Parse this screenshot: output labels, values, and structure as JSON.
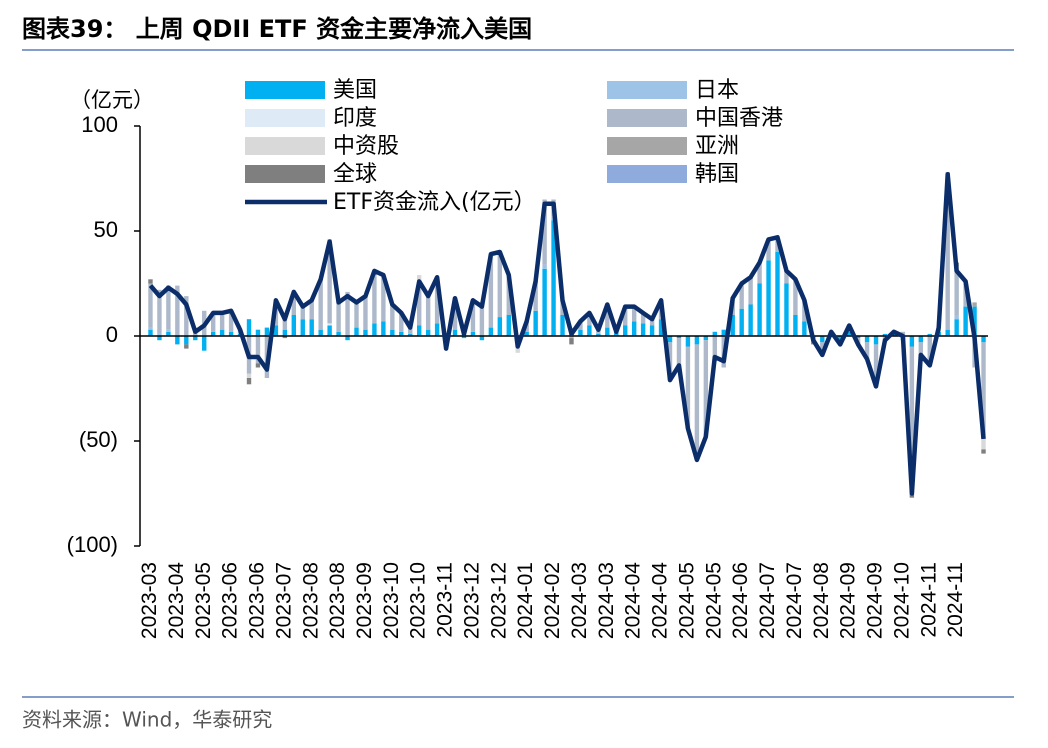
{
  "chart_data": {
    "type": "bar",
    "title": "图表39： 上周 QDII ETF 资金主要净流入美国",
    "y_label": "（亿元）",
    "source": "资料来源：Wind，华泰研究",
    "categories": [
      "2023-03",
      null,
      null,
      "2023-04",
      null,
      null,
      "2023-05",
      null,
      null,
      "2023-06",
      null,
      null,
      "2023-06",
      null,
      null,
      "2023-07",
      null,
      null,
      "2023-08",
      null,
      null,
      "2023-08",
      null,
      null,
      "2023-09",
      null,
      null,
      "2023-10",
      null,
      null,
      "2023-10",
      null,
      null,
      "2023-11",
      null,
      null,
      "2023-12",
      null,
      null,
      "2023-12",
      null,
      null,
      "2024-01",
      null,
      null,
      "2024-02",
      null,
      null,
      "2024-03",
      null,
      null,
      "2024-03",
      null,
      null,
      "2024-04",
      null,
      null,
      "2024-04",
      null,
      null,
      "2024-05",
      null,
      null,
      "2024-05",
      null,
      null,
      "2024-06",
      null,
      null,
      "2024-07",
      null,
      null,
      "2024-07",
      null,
      null,
      "2024-08",
      null,
      null,
      "2024-09",
      null,
      null,
      "2024-09",
      null,
      null,
      "2024-10",
      null,
      null,
      "2024-11",
      null,
      null,
      "2024-11",
      null,
      null,
      null
    ],
    "ylim": [
      -100,
      100
    ],
    "yticks": [
      {
        "value": -100,
        "label": "(100)"
      },
      {
        "value": -50,
        "label": "(50)"
      },
      0,
      50,
      100
    ],
    "series": [
      {
        "name": "美国",
        "color": "#00b0f0",
        "values": [
          3,
          -2,
          2,
          -4,
          -4,
          -2,
          -7,
          2,
          3,
          2,
          1,
          8,
          3,
          4,
          5,
          3,
          10,
          8,
          8,
          3,
          5,
          2,
          -2,
          4,
          3,
          6,
          7,
          3,
          2,
          1,
          5,
          3,
          6,
          -2,
          3,
          -1,
          2,
          -2,
          4,
          9,
          10,
          -2,
          2,
          12,
          32,
          55,
          10,
          2,
          3,
          5,
          1,
          4,
          2,
          5,
          7,
          6,
          5,
          8,
          -3,
          -1,
          -5,
          -4,
          -2,
          2,
          3,
          10,
          13,
          15,
          25,
          36,
          40,
          25,
          10,
          7,
          -2,
          -3,
          1,
          -2,
          2,
          -1,
          -3,
          -4,
          1,
          1,
          -2,
          -5,
          -3,
          1,
          2,
          3,
          8,
          14,
          14,
          -3
        ]
      },
      {
        "name": "日本",
        "color": "#9dc3e6",
        "values": [
          1,
          1,
          1,
          0,
          0,
          0,
          0,
          0,
          0,
          0,
          0,
          0,
          0,
          0,
          0,
          0,
          0,
          0,
          0,
          0,
          0,
          0,
          0,
          0,
          0,
          0,
          0,
          0,
          0,
          0,
          0,
          0,
          0,
          0,
          0,
          0,
          0,
          0,
          0,
          0,
          0,
          0,
          0,
          0,
          2,
          2,
          0,
          0,
          0,
          0,
          0,
          0,
          0,
          0,
          0,
          0,
          0,
          0,
          0,
          0,
          0,
          0,
          0,
          0,
          0,
          0,
          0,
          0,
          0,
          0,
          0,
          0,
          0,
          0,
          0,
          0,
          0,
          0,
          0,
          0,
          0,
          0,
          0,
          0,
          0,
          0,
          0,
          0,
          0,
          0,
          2,
          0,
          0,
          0
        ]
      },
      {
        "name": "印度",
        "color": "#deebf7",
        "values": [
          0,
          0,
          0,
          0,
          0,
          0,
          0,
          0,
          0,
          0,
          0,
          0,
          0,
          0,
          0,
          0,
          0,
          0,
          0,
          0,
          1,
          0,
          0,
          0,
          0,
          0,
          0,
          0,
          0,
          0,
          0,
          0,
          0,
          0,
          0,
          0,
          0,
          0,
          0,
          0,
          0,
          0,
          0,
          0,
          0,
          0,
          0,
          0,
          0,
          0,
          0,
          0,
          0,
          0,
          0,
          0,
          0,
          0,
          0,
          0,
          0,
          0,
          0,
          0,
          0,
          0,
          0,
          0,
          0,
          0,
          0,
          0,
          0,
          0,
          0,
          0,
          0,
          0,
          0,
          0,
          0,
          0,
          0,
          0,
          0,
          0,
          0,
          0,
          0,
          0,
          0,
          0,
          0,
          0
        ]
      },
      {
        "name": "中国香港",
        "color": "#adb9ca",
        "values": [
          21,
          21,
          21,
          24,
          19,
          4,
          12,
          9,
          8,
          10,
          2,
          -18,
          -13,
          -20,
          12,
          5,
          11,
          6,
          9,
          24,
          40,
          14,
          21,
          12,
          16,
          25,
          22,
          12,
          9,
          3,
          21,
          16,
          22,
          -4,
          15,
          2,
          15,
          16,
          35,
          31,
          19,
          -3,
          5,
          14,
          31,
          8,
          7,
          -1,
          4,
          6,
          2,
          11,
          0,
          9,
          7,
          5,
          3,
          9,
          -18,
          -13,
          -39,
          -55,
          -46,
          -12,
          -15,
          8,
          12,
          13,
          10,
          10,
          7,
          6,
          17,
          10,
          0,
          -6,
          1,
          -2,
          3,
          -3,
          -8,
          -20,
          -3,
          1,
          2,
          -70,
          -6,
          -13,
          2,
          74,
          23,
          12,
          -15,
          -46
        ]
      },
      {
        "name": "中资股",
        "color": "#d9d9d9",
        "values": [
          0,
          0,
          0,
          0,
          0,
          0,
          0,
          0,
          0,
          0,
          0,
          -2,
          0,
          0,
          0,
          0,
          0,
          0,
          0,
          0,
          0,
          0,
          0,
          0,
          0,
          0,
          0,
          0,
          0,
          0,
          3,
          0,
          0,
          0,
          0,
          0,
          0,
          0,
          0,
          0,
          0,
          -3,
          0,
          0,
          0,
          0,
          0,
          0,
          0,
          0,
          0,
          0,
          0,
          0,
          0,
          0,
          0,
          0,
          0,
          0,
          0,
          0,
          0,
          0,
          0,
          0,
          0,
          0,
          0,
          0,
          0,
          0,
          0,
          0,
          0,
          0,
          0,
          0,
          0,
          0,
          0,
          0,
          0,
          0,
          0,
          0,
          0,
          0,
          0,
          0,
          0,
          0,
          0,
          -5
        ]
      },
      {
        "name": "亚洲",
        "color": "#a6a6a6",
        "values": [
          0,
          0,
          0,
          0,
          0,
          0,
          0,
          0,
          0,
          0,
          0,
          0,
          0,
          0,
          0,
          0,
          0,
          0,
          0,
          0,
          0,
          0,
          0,
          0,
          0,
          0,
          0,
          0,
          0,
          0,
          0,
          0,
          0,
          0,
          0,
          0,
          0,
          0,
          0,
          0,
          0,
          0,
          0,
          0,
          0,
          0,
          0,
          0,
          0,
          0,
          0,
          0,
          0,
          0,
          0,
          0,
          0,
          0,
          0,
          0,
          0,
          0,
          0,
          0,
          0,
          0,
          0,
          0,
          0,
          0,
          0,
          0,
          0,
          0,
          0,
          0,
          0,
          0,
          0,
          0,
          0,
          0,
          0,
          0,
          0,
          0,
          0,
          0,
          0,
          1,
          0,
          0,
          2,
          0
        ]
      },
      {
        "name": "全球",
        "color": "#7f7f7f",
        "values": [
          2,
          0,
          0,
          0,
          -2,
          0,
          0,
          0,
          0,
          0,
          0,
          -3,
          -2,
          0,
          0,
          -1,
          0,
          0,
          0,
          0,
          0,
          0,
          0,
          0,
          0,
          0,
          0,
          0,
          0,
          0,
          0,
          0,
          0,
          0,
          0,
          0,
          0,
          0,
          0,
          0,
          0,
          0,
          0,
          0,
          0,
          0,
          0,
          -3,
          0,
          0,
          0,
          0,
          0,
          0,
          0,
          0,
          0,
          0,
          0,
          0,
          0,
          0,
          0,
          0,
          0,
          0,
          0,
          0,
          0,
          0,
          0,
          0,
          0,
          0,
          -2,
          0,
          0,
          0,
          0,
          0,
          0,
          0,
          0,
          0,
          0,
          -2,
          0,
          0,
          0,
          0,
          2,
          0,
          0,
          -2
        ]
      },
      {
        "name": "韩国",
        "color": "#8faadc",
        "values": [
          0,
          0,
          0,
          0,
          0,
          0,
          0,
          0,
          0,
          0,
          0,
          0,
          0,
          0,
          0,
          0,
          0,
          0,
          0,
          0,
          0,
          0,
          0,
          0,
          0,
          0,
          0,
          0,
          0,
          0,
          0,
          0,
          0,
          0,
          0,
          0,
          0,
          0,
          0,
          0,
          0,
          0,
          0,
          0,
          0,
          0,
          0,
          0,
          0,
          0,
          0,
          0,
          0,
          0,
          0,
          0,
          0,
          0,
          0,
          0,
          0,
          0,
          0,
          0,
          0,
          0,
          0,
          0,
          0,
          0,
          0,
          0,
          0,
          0,
          0,
          0,
          0,
          0,
          0,
          0,
          0,
          0,
          0,
          0,
          0,
          0,
          0,
          0,
          0,
          0,
          0,
          0,
          0,
          0
        ]
      },
      {
        "name": "ETF资金流入(亿元）",
        "type": "line",
        "color": "#0b2e6b",
        "values": [
          24,
          19,
          23,
          20,
          15,
          2,
          5,
          11,
          11,
          12,
          3,
          -10,
          -10,
          -16,
          17,
          8,
          21,
          14,
          17,
          27,
          45,
          16,
          19,
          16,
          19,
          31,
          29,
          15,
          11,
          4,
          26,
          19,
          28,
          -6,
          18,
          1,
          17,
          14,
          39,
          40,
          29,
          -5,
          7,
          26,
          63,
          63,
          17,
          1,
          7,
          11,
          3,
          15,
          2,
          14,
          14,
          11,
          8,
          17,
          -21,
          -14,
          -44,
          -59,
          -48,
          -10,
          -12,
          18,
          25,
          28,
          35,
          46,
          47,
          31,
          27,
          17,
          -2,
          -9,
          2,
          -4,
          5,
          -4,
          -11,
          -24,
          -2,
          2,
          0,
          -75,
          -9,
          -14,
          4,
          77,
          31,
          26,
          -1,
          -49
        ]
      }
    ]
  }
}
